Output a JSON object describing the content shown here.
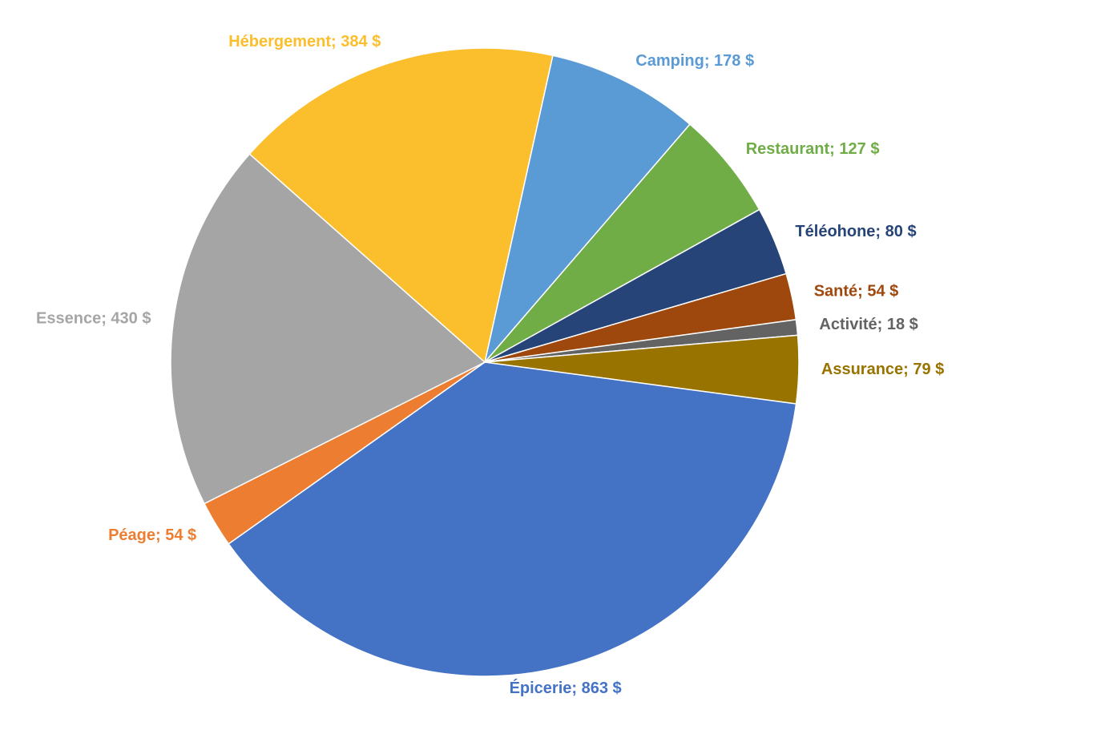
{
  "chart_data": {
    "type": "pie",
    "value_labels": [
      "Camping; 178 $",
      "Restaurant; 127 $",
      "Téléohone; 80 $",
      "Santé; 54 $",
      "Activité; 18 $",
      "Assurance; 79 $",
      "Épicerie; 863 $",
      "Péage; 54 $",
      "Essence; 430 $",
      "Hébergement; 384 $"
    ],
    "values": [
      178,
      127,
      80,
      54,
      18,
      79,
      863,
      54,
      430,
      384
    ],
    "colors": [
      "#5b9bd5",
      "#70ad47",
      "#264478",
      "#9e480e",
      "#636363",
      "#997300",
      "#4472c4",
      "#ed7d31",
      "#a5a5a5",
      "#fbbe2d"
    ],
    "start_angle": 12.5
  }
}
